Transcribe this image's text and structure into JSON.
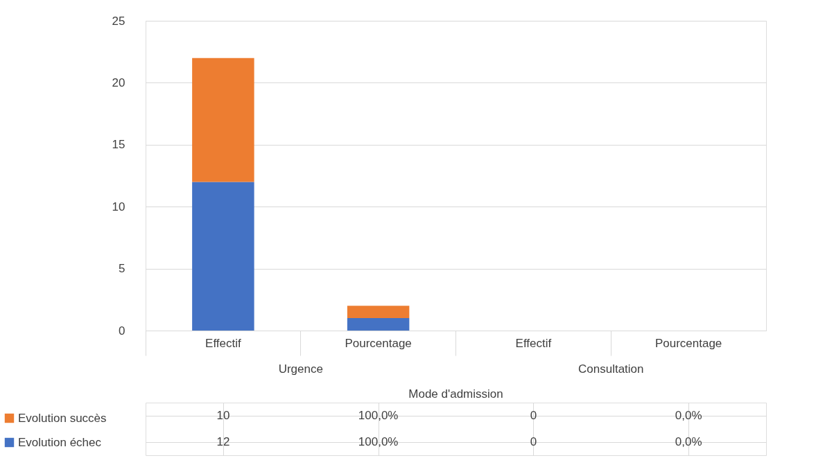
{
  "chart_data": {
    "type": "bar",
    "stacked": true,
    "categories": [
      "Effectif",
      "Pourcentage",
      "Effectif",
      "Pourcentage"
    ],
    "xlabel": "Mode d'admission",
    "annotations": [
      "Urgence",
      "Consultation"
    ],
    "series": [
      {
        "name": "Evolution échec",
        "color": "#4472c4",
        "values": [
          12,
          1,
          0,
          0
        ],
        "value_labels": [
          "12",
          "100,0%",
          "0",
          "0,0%"
        ]
      },
      {
        "name": "Evolution succès",
        "color": "#ed7d31",
        "values": [
          10,
          1,
          0,
          0
        ],
        "value_labels": [
          "10",
          "100,0%",
          "0",
          "0,0%"
        ]
      }
    ],
    "ylim": [
      0,
      25
    ],
    "yticks": [
      0,
      5,
      10,
      15,
      20,
      25
    ],
    "grid": "y",
    "legend": "bottom"
  }
}
